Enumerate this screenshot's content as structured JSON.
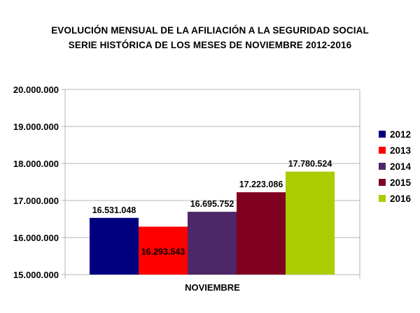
{
  "chart_data": {
    "type": "bar",
    "title": "EVOLUCIÓN MENSUAL DE LA  AFILIACIÓN A LA SEGURIDAD SOCIAL",
    "subtitle": "SERIE HISTÓRICA DE LOS MESES DE NOVIEMBRE 2012-2016",
    "xlabel": "",
    "ylabel": "",
    "categories": [
      "NOVIEMBRE"
    ],
    "ylim": [
      15000000,
      20000000
    ],
    "yticks": [
      15000000,
      16000000,
      17000000,
      18000000,
      19000000,
      20000000
    ],
    "ytick_labels": [
      "15.000.000",
      "16.000.000",
      "17.000.000",
      "18.000.000",
      "19.000.000",
      "20.000.000"
    ],
    "grid": true,
    "legend_position": "right",
    "series": [
      {
        "name": "2012",
        "values": [
          16531048
        ],
        "label": "16.531.048",
        "color": "#000080"
      },
      {
        "name": "2013",
        "values": [
          16293543
        ],
        "label": "16.293.543",
        "color": "#ff0000"
      },
      {
        "name": "2014",
        "values": [
          16695752
        ],
        "label": "16.695.752",
        "color": "#4e2768"
      },
      {
        "name": "2015",
        "values": [
          17223086
        ],
        "label": "17.223.086",
        "color": "#800020"
      },
      {
        "name": "2016",
        "values": [
          17780524
        ],
        "label": "17.780.524",
        "color": "#aacc00"
      }
    ]
  }
}
